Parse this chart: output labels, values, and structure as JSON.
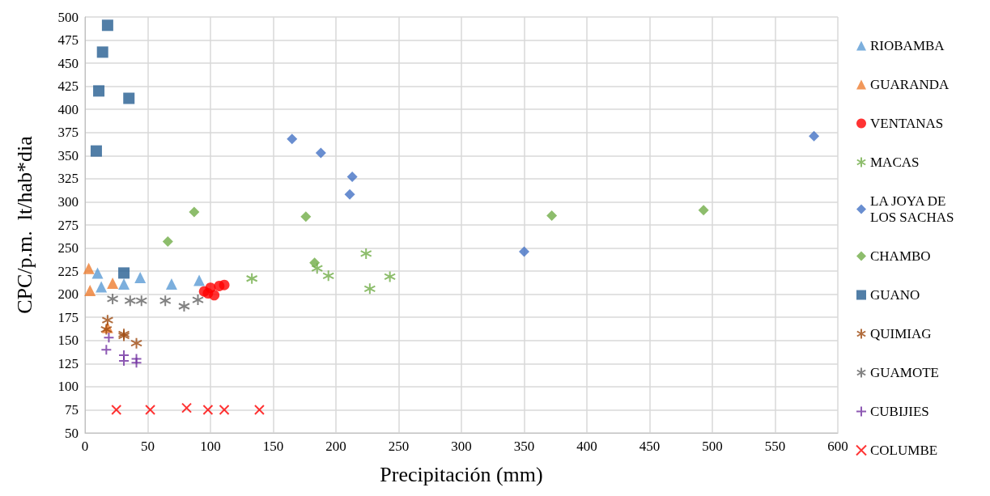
{
  "chart_data": {
    "type": "scatter",
    "xlabel": "Precipitación (mm)",
    "ylabel": "CPC/p.m.  lt/hab*dia",
    "xlim": [
      0,
      600
    ],
    "xticks": [
      0,
      50,
      100,
      150,
      200,
      250,
      300,
      350,
      400,
      450,
      500,
      550,
      600
    ],
    "ylim": [
      50,
      500
    ],
    "yticks": [
      50,
      75,
      100,
      125,
      150,
      175,
      200,
      225,
      250,
      275,
      300,
      325,
      350,
      375,
      400,
      425,
      450,
      475,
      500
    ],
    "grid": true,
    "legend": "right",
    "series": [
      {
        "name": "RIOBAMBA",
        "color": "#5b9bd5",
        "marker": "triangle",
        "x": [
          10,
          13,
          31,
          44,
          69,
          91
        ],
        "values": [
          223,
          208,
          211,
          218,
          211,
          215
        ]
      },
      {
        "name": "GUARANDA",
        "color": "#ed7d31",
        "marker": "triangle",
        "x": [
          3,
          4,
          22,
          18
        ],
        "values": [
          228,
          204,
          212,
          164
        ]
      },
      {
        "name": "VENTANAS",
        "color": "#ff0000",
        "marker": "circle",
        "x": [
          95,
          100,
          98,
          103,
          107,
          111
        ],
        "values": [
          203,
          207,
          201,
          199,
          209,
          210
        ]
      },
      {
        "name": "MACAS",
        "color": "#70ad47",
        "marker": "cross",
        "x": [
          133,
          185,
          194,
          224,
          227,
          243
        ],
        "values": [
          217,
          228,
          220,
          244,
          206,
          219
        ]
      },
      {
        "name": "LA JOYA DE LOS SACHAS",
        "color": "#4472c4",
        "marker": "diamond",
        "x": [
          165,
          188,
          213,
          211,
          350,
          581
        ],
        "values": [
          368,
          353,
          327,
          308,
          246,
          371
        ]
      },
      {
        "name": "CHAMBO",
        "color": "#70ad47",
        "marker": "diamond",
        "x": [
          66,
          87,
          176,
          183,
          372,
          493
        ],
        "values": [
          257,
          289,
          284,
          234,
          285,
          291
        ]
      },
      {
        "name": "GUANO",
        "color": "#255e91",
        "marker": "square",
        "x": [
          18,
          14,
          11,
          35,
          9,
          31
        ],
        "values": [
          491,
          462,
          420,
          412,
          355,
          223
        ]
      },
      {
        "name": "QUIMIAG",
        "color": "#9e480e",
        "marker": "cross",
        "x": [
          18,
          17,
          31,
          31,
          41
        ],
        "values": [
          172,
          162,
          157,
          155,
          147
        ]
      },
      {
        "name": "GUAMOTE",
        "color": "#636363",
        "marker": "cross",
        "x": [
          22,
          36,
          45,
          64,
          79,
          90
        ],
        "values": [
          195,
          193,
          193,
          193,
          187,
          194
        ]
      },
      {
        "name": "CUBIJIES",
        "color": "#7030a0",
        "marker": "plus",
        "x": [
          19,
          17,
          31,
          31,
          41,
          41
        ],
        "values": [
          153,
          140,
          134,
          128,
          130,
          126
        ]
      },
      {
        "name": "COLUMBE",
        "color": "#ff0000",
        "x": [
          25,
          52,
          81,
          98,
          111,
          139
        ],
        "values": [
          75,
          75,
          77,
          75,
          75,
          75
        ]
      }
    ]
  }
}
